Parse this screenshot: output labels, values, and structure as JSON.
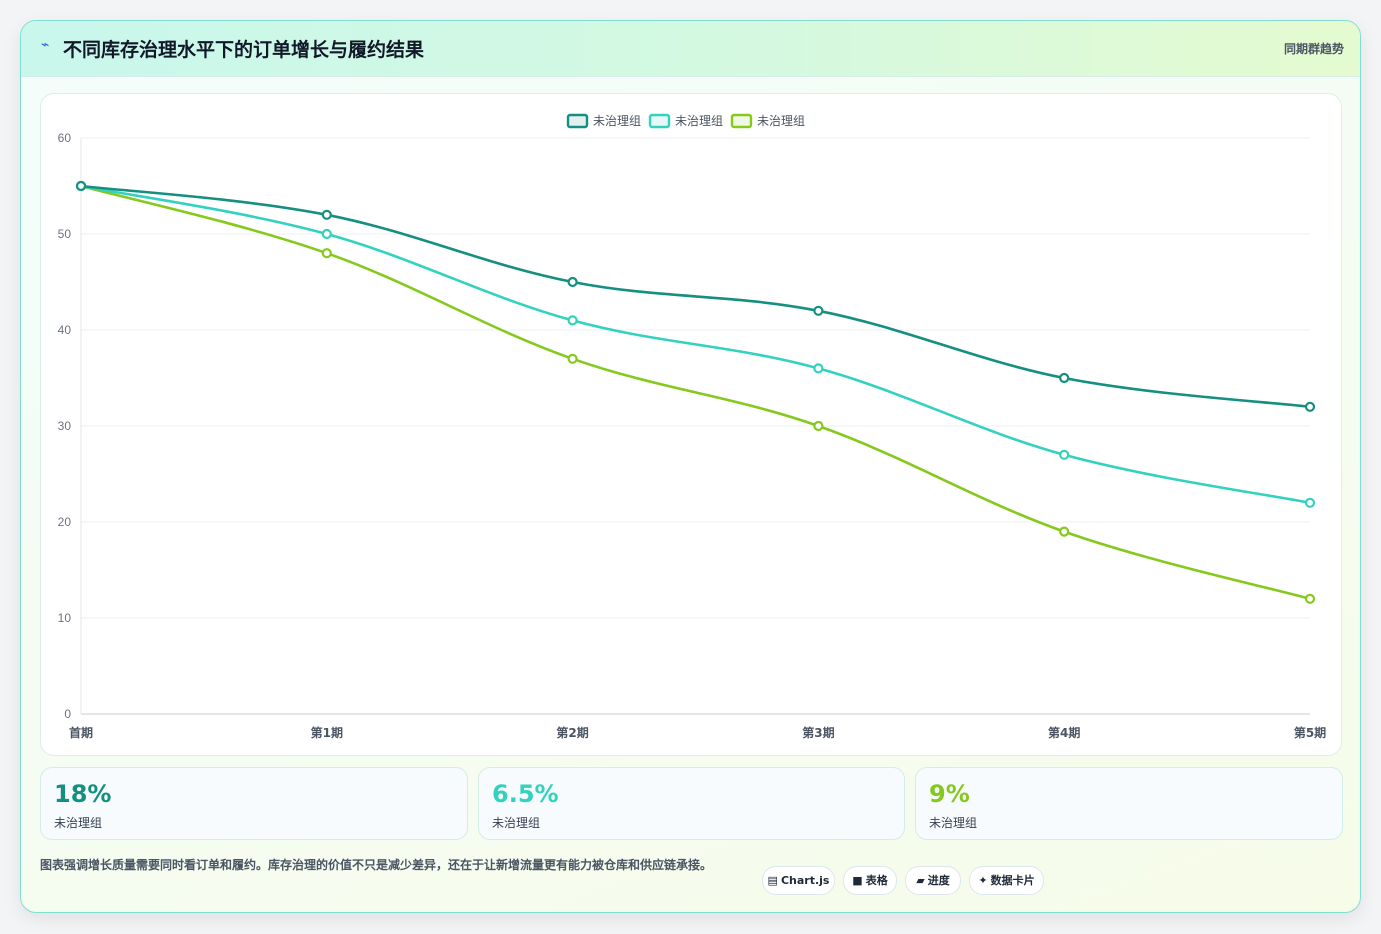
{
  "header": {
    "icon": "trend-icon",
    "title": "不同库存治理水平下的订单增长与履约结果",
    "tag": "同期群趋势"
  },
  "chart_data": {
    "type": "line",
    "categories": [
      "首期",
      "第1期",
      "第2期",
      "第3期",
      "第4期",
      "第5期"
    ],
    "ylim": [
      0,
      60
    ],
    "yticks": [
      0,
      10,
      20,
      30,
      40,
      50,
      60
    ],
    "grid": true,
    "legend_position": "top-center",
    "series": [
      {
        "name": "未治理组",
        "color": "#148f80",
        "values": [
          55,
          52,
          45,
          42,
          35,
          32
        ]
      },
      {
        "name": "未治理组",
        "color": "#33d1c0",
        "values": [
          55,
          50,
          41,
          36,
          27,
          22
        ]
      },
      {
        "name": "未治理组",
        "color": "#84c91c",
        "values": [
          55,
          48,
          37,
          30,
          19,
          12
        ]
      }
    ]
  },
  "kpis": [
    {
      "value": "18%",
      "label": "未治理组",
      "color": "#148f80"
    },
    {
      "value": "6.5%",
      "label": "未治理组",
      "color": "#33d1c0"
    },
    {
      "value": "9%",
      "label": "未治理组",
      "color": "#84c91c"
    }
  ],
  "footer": {
    "note": "图表强调增长质量需要同时看订单和履约。库存治理的价值不只是减少差异，还在于让新增流量更有能力被仓库和供应链承接。",
    "pills": [
      {
        "icon": "chart-icon",
        "glyph": "▤",
        "label": "Chart.js"
      },
      {
        "icon": "table-icon",
        "glyph": "■",
        "label": "表格"
      },
      {
        "icon": "progress-icon",
        "glyph": "▰",
        "label": "进度"
      },
      {
        "icon": "card-icon",
        "glyph": "✦",
        "label": "数据卡片"
      }
    ]
  }
}
